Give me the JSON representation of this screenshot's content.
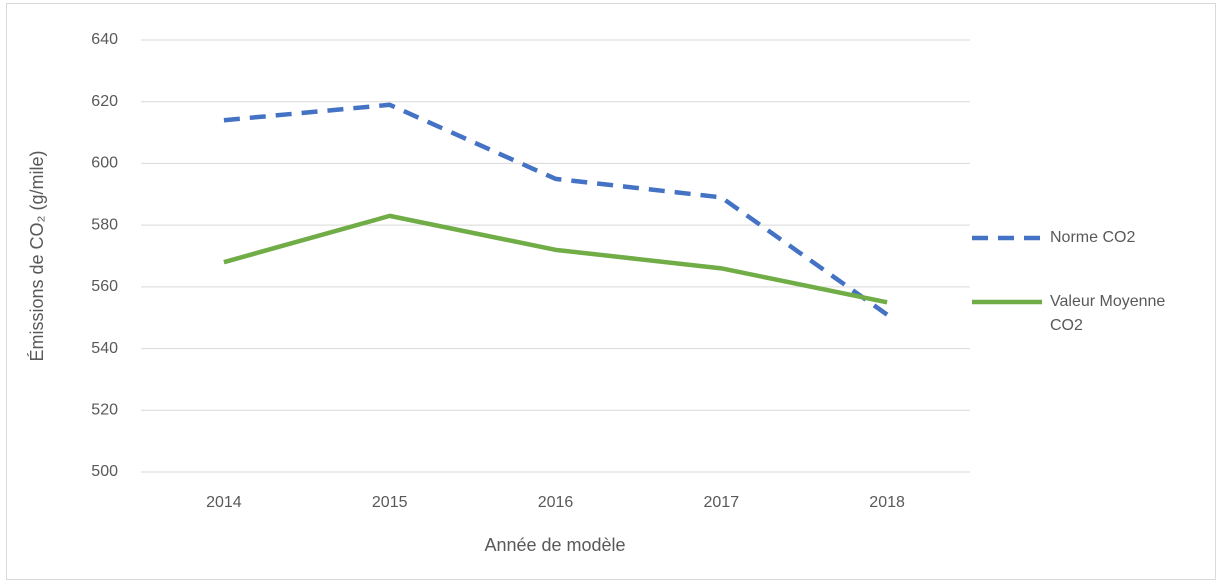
{
  "chart_data": {
    "type": "line",
    "x_label": "Année de modèle",
    "y_label": "Émissions de CO₂ (g/mile)",
    "categories": [
      "2014",
      "2015",
      "2016",
      "2017",
      "2018"
    ],
    "series": [
      {
        "name": "Norme CO2",
        "color": "#4472c4",
        "dashed": true,
        "values": [
          614,
          619,
          595,
          589,
          551
        ]
      },
      {
        "name": "Valeur Moyenne CO2",
        "color": "#70ad47",
        "dashed": false,
        "values": [
          568,
          583,
          572,
          566,
          555
        ]
      }
    ],
    "ylim": [
      500,
      640
    ],
    "yticks": [
      500,
      520,
      540,
      560,
      580,
      600,
      620,
      640
    ],
    "grid": true,
    "legend": "right"
  }
}
